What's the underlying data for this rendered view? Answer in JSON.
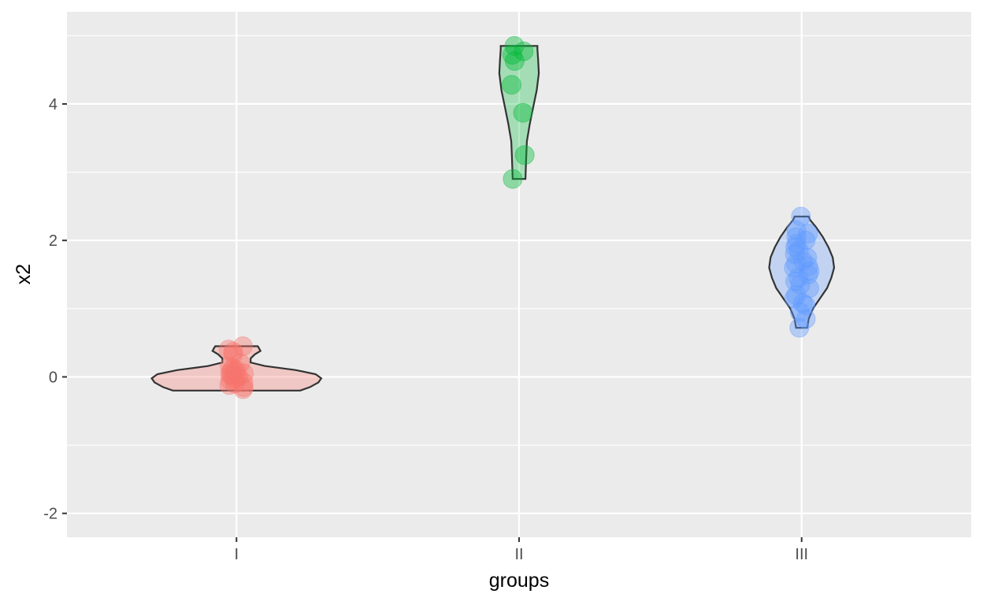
{
  "chart_data": {
    "type": "violin",
    "xlabel": "groups",
    "ylabel": "x2",
    "categories": [
      "I",
      "II",
      "III"
    ],
    "ylim": [
      -2.35,
      5.35
    ],
    "yticks": [
      -2,
      0,
      2,
      4
    ],
    "yticks_labels": [
      "-2",
      "0",
      "2",
      "4"
    ],
    "grid": true,
    "legend": "none",
    "colors": {
      "panel_background": "#EBEBEB",
      "grid": "#FFFFFF",
      "outline": "#333333"
    },
    "groups": [
      {
        "category": "I",
        "color": "#F8766D",
        "range": [
          -0.2,
          0.45
        ],
        "density": [
          {
            "y": -0.2,
            "w": 0.45
          },
          {
            "y": -0.15,
            "w": 0.52
          },
          {
            "y": -0.08,
            "w": 0.58
          },
          {
            "y": -0.02,
            "w": 0.6
          },
          {
            "y": 0.04,
            "w": 0.56
          },
          {
            "y": 0.1,
            "w": 0.42
          },
          {
            "y": 0.16,
            "w": 0.2
          },
          {
            "y": 0.21,
            "w": 0.1
          },
          {
            "y": 0.27,
            "w": 0.1
          },
          {
            "y": 0.33,
            "w": 0.13
          },
          {
            "y": 0.38,
            "w": 0.17
          },
          {
            "y": 0.42,
            "w": 0.16
          },
          {
            "y": 0.45,
            "w": 0.15
          }
        ],
        "points": [
          -0.18,
          -0.15,
          -0.12,
          -0.1,
          -0.08,
          -0.05,
          -0.03,
          -0.01,
          0.0,
          0.02,
          0.04,
          0.05,
          0.07,
          0.08,
          0.1,
          0.12,
          0.15,
          0.2,
          0.33,
          0.37,
          0.4,
          0.45
        ]
      },
      {
        "category": "II",
        "color": "#00BA38",
        "range": [
          2.9,
          4.85
        ],
        "density": [
          {
            "y": 2.9,
            "w": 0.045
          },
          {
            "y": 3.2,
            "w": 0.05
          },
          {
            "y": 3.45,
            "w": 0.055
          },
          {
            "y": 3.7,
            "w": 0.075
          },
          {
            "y": 3.95,
            "w": 0.1
          },
          {
            "y": 4.2,
            "w": 0.125
          },
          {
            "y": 4.45,
            "w": 0.14
          },
          {
            "y": 4.65,
            "w": 0.135
          },
          {
            "y": 4.8,
            "w": 0.13
          },
          {
            "y": 4.85,
            "w": 0.13
          }
        ],
        "points": [
          2.9,
          3.25,
          3.87,
          4.28,
          4.63,
          4.72,
          4.77,
          4.85
        ]
      },
      {
        "category": "III",
        "color": "#619CFF",
        "range": [
          0.72,
          2.35
        ],
        "density": [
          {
            "y": 0.72,
            "w": 0.04
          },
          {
            "y": 0.85,
            "w": 0.05
          },
          {
            "y": 1.0,
            "w": 0.08
          },
          {
            "y": 1.15,
            "w": 0.13
          },
          {
            "y": 1.3,
            "w": 0.18
          },
          {
            "y": 1.45,
            "w": 0.21
          },
          {
            "y": 1.6,
            "w": 0.23
          },
          {
            "y": 1.75,
            "w": 0.22
          },
          {
            "y": 1.9,
            "w": 0.19
          },
          {
            "y": 2.05,
            "w": 0.15
          },
          {
            "y": 2.2,
            "w": 0.1
          },
          {
            "y": 2.3,
            "w": 0.06
          },
          {
            "y": 2.35,
            "w": 0.05
          }
        ],
        "points": [
          0.72,
          0.85,
          0.95,
          1.05,
          1.08,
          1.15,
          1.2,
          1.3,
          1.35,
          1.4,
          1.45,
          1.5,
          1.55,
          1.6,
          1.62,
          1.66,
          1.7,
          1.75,
          1.8,
          1.85,
          1.9,
          1.95,
          2.0,
          2.05,
          2.1,
          2.15,
          2.35
        ]
      }
    ]
  }
}
